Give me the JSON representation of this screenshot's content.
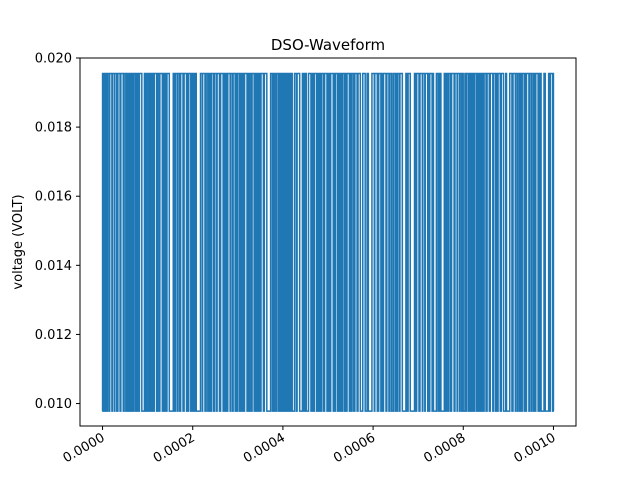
{
  "chart_data": {
    "type": "line",
    "title": "DSO-Waveform",
    "xlabel": "",
    "ylabel": "voltage (VOLT)",
    "xlim": [
      -5e-05,
      0.00105
    ],
    "ylim": [
      0.00935,
      0.02
    ],
    "x_ticks": [
      "0.0000",
      "0.0002",
      "0.0004",
      "0.0006",
      "0.0008",
      "0.0010"
    ],
    "y_ticks": [
      "0.010",
      "0.012",
      "0.014",
      "0.016",
      "0.018",
      "0.020"
    ],
    "grid": false,
    "series": [
      {
        "color": "#1f77b4",
        "x_range": [
          0.0,
          0.001
        ],
        "levels": [
          0.00978,
          0.01955
        ]
      }
    ]
  }
}
